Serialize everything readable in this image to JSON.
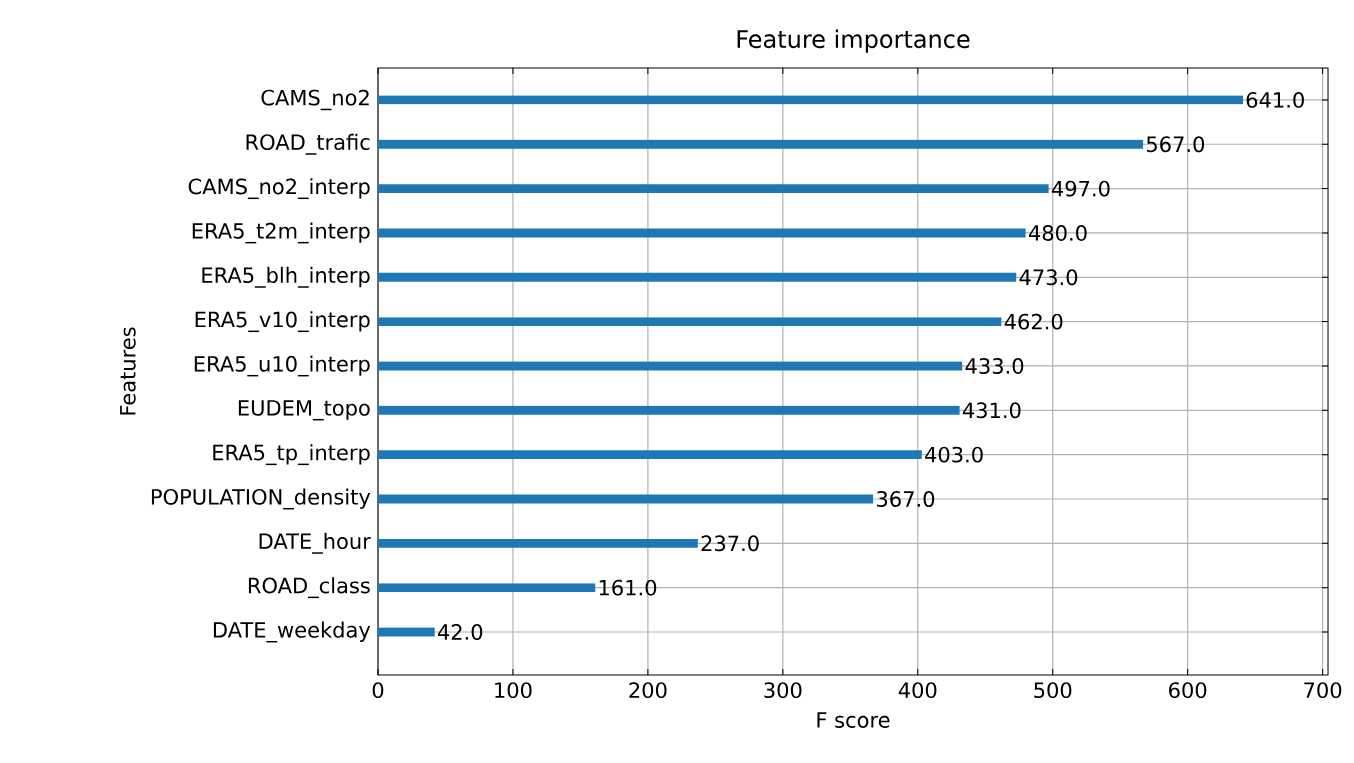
{
  "chart_data": {
    "type": "bar",
    "orientation": "horizontal",
    "title": "Feature importance",
    "xlabel": "F score",
    "ylabel": "Features",
    "categories": [
      "CAMS_no2",
      "ROAD_trafic",
      "CAMS_no2_interp",
      "ERA5_t2m_interp",
      "ERA5_blh_interp",
      "ERA5_v10_interp",
      "ERA5_u10_interp",
      "EUDEM_topo",
      "ERA5_tp_interp",
      "POPULATION_density",
      "DATE_hour",
      "ROAD_class",
      "DATE_weekday"
    ],
    "values": [
      641,
      567,
      497,
      480,
      473,
      462,
      433,
      431,
      403,
      367,
      237,
      161,
      42
    ],
    "value_labels": [
      "641.0",
      "567.0",
      "497.0",
      "480.0",
      "473.0",
      "462.0",
      "433.0",
      "431.0",
      "403.0",
      "367.0",
      "237.0",
      "161.0",
      "42.0"
    ],
    "color": "#1f77b4",
    "xlim": [
      0,
      704
    ],
    "xticks": [
      0,
      100,
      200,
      300,
      400,
      500,
      600,
      700
    ],
    "grid": true
  }
}
